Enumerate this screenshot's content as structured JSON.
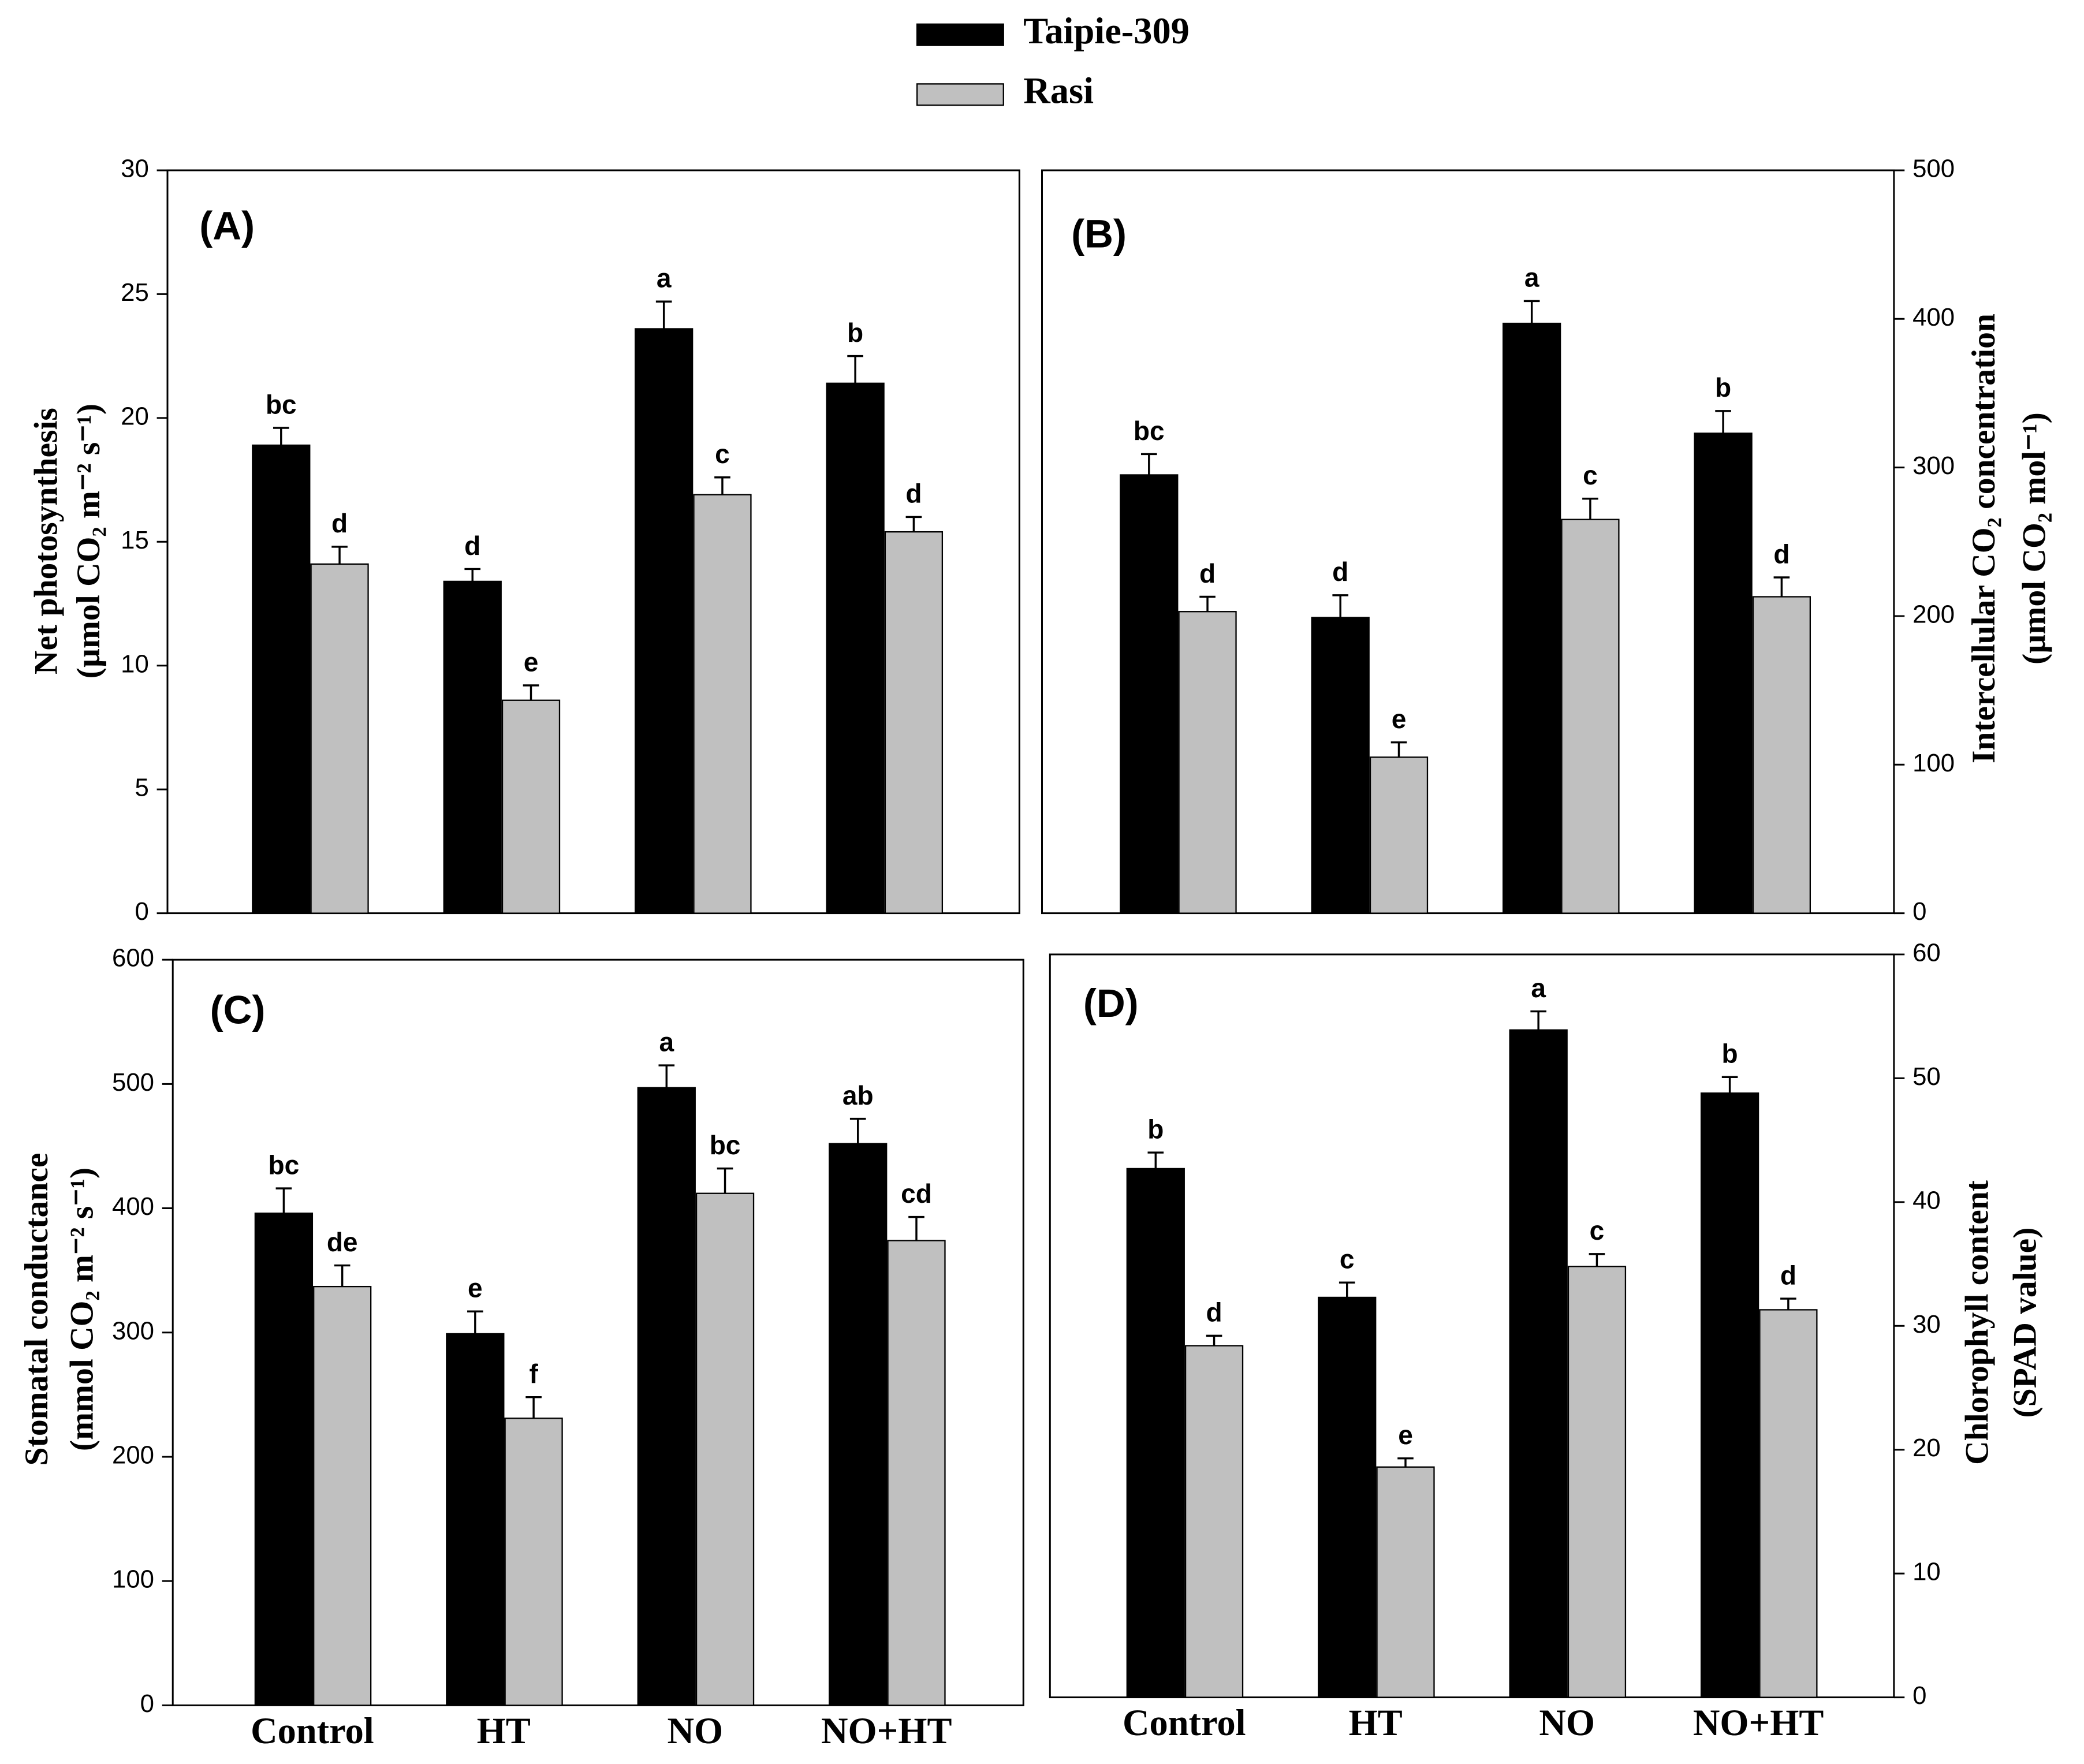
{
  "legend": [
    {
      "name": "Taipie-309",
      "color": "#000000"
    },
    {
      "name": "Rasi",
      "color": "#c0c0c0"
    }
  ],
  "chart_data": [
    {
      "type": "bar",
      "title": "(A)",
      "ylabel": [
        "Net photosynthesis",
        "(µmol CO₂ m⁻² s⁻¹)"
      ],
      "y_axis_side": "left",
      "categories": [
        null,
        null,
        null,
        null
      ],
      "ylim": [
        0,
        30
      ],
      "yticks": [
        0,
        5,
        10,
        15,
        20,
        25,
        30
      ],
      "series": [
        {
          "color": "#000000",
          "values": [
            18.9,
            13.4,
            23.6,
            21.4
          ],
          "errors": [
            0.7,
            0.5,
            1.1,
            1.1
          ],
          "labels": [
            "bc",
            "d",
            "a",
            "b"
          ]
        },
        {
          "color": "#c0c0c0",
          "values": [
            14.1,
            8.6,
            16.9,
            15.4
          ],
          "errors": [
            0.7,
            0.6,
            0.7,
            0.6
          ],
          "labels": [
            "d",
            "e",
            "c",
            "d"
          ]
        }
      ]
    },
    {
      "type": "bar",
      "title": "(B)",
      "ylabel": [
        "Intercellular CO₂ concentration",
        "(µmol CO₂ mol⁻¹)"
      ],
      "y_axis_side": "right",
      "categories": [
        null,
        null,
        null,
        null
      ],
      "ylim": [
        0,
        500
      ],
      "yticks": [
        0,
        100,
        200,
        300,
        400,
        500
      ],
      "series": [
        {
          "color": "#000000",
          "values": [
            295,
            199,
            397,
            323
          ],
          "errors": [
            14,
            15,
            15,
            15
          ],
          "labels": [
            "bc",
            "d",
            "a",
            "b"
          ]
        },
        {
          "color": "#c0c0c0",
          "values": [
            203,
            105,
            265,
            213
          ],
          "errors": [
            10,
            10,
            14,
            13
          ],
          "labels": [
            "d",
            "e",
            "c",
            "d"
          ]
        }
      ]
    },
    {
      "type": "bar",
      "title": "(C)",
      "ylabel": [
        "Stomatal conductance",
        "(mmol CO₂ m⁻² s⁻¹)"
      ],
      "y_axis_side": "left",
      "categories": [
        "Control",
        "HT",
        "NO",
        "NO+HT"
      ],
      "ylim": [
        0,
        600
      ],
      "yticks": [
        0,
        100,
        200,
        300,
        400,
        500,
        600
      ],
      "series": [
        {
          "color": "#000000",
          "values": [
            396,
            299,
            497,
            452
          ],
          "errors": [
            20,
            18,
            18,
            20
          ],
          "labels": [
            "bc",
            "e",
            "a",
            "ab"
          ]
        },
        {
          "color": "#c0c0c0",
          "values": [
            337,
            231,
            412,
            374
          ],
          "errors": [
            17,
            17,
            20,
            19
          ],
          "labels": [
            "de",
            "f",
            "bc",
            "cd"
          ]
        }
      ]
    },
    {
      "type": "bar",
      "title": "(D)",
      "ylabel": [
        "Chlorophyll content",
        "(SPAD value)"
      ],
      "y_axis_side": "right",
      "categories": [
        "Control",
        "HT",
        "NO",
        "NO+HT"
      ],
      "ylim": [
        0,
        60
      ],
      "yticks": [
        0,
        10,
        20,
        30,
        40,
        50,
        60
      ],
      "series": [
        {
          "color": "#000000",
          "values": [
            42.7,
            32.3,
            53.9,
            48.8
          ],
          "errors": [
            1.3,
            1.2,
            1.5,
            1.3
          ],
          "labels": [
            "b",
            "c",
            "a",
            "b"
          ]
        },
        {
          "color": "#c0c0c0",
          "values": [
            28.4,
            18.6,
            34.8,
            31.3
          ],
          "errors": [
            0.8,
            0.7,
            1.0,
            0.9
          ],
          "labels": [
            "d",
            "e",
            "c",
            "d"
          ]
        }
      ]
    }
  ]
}
